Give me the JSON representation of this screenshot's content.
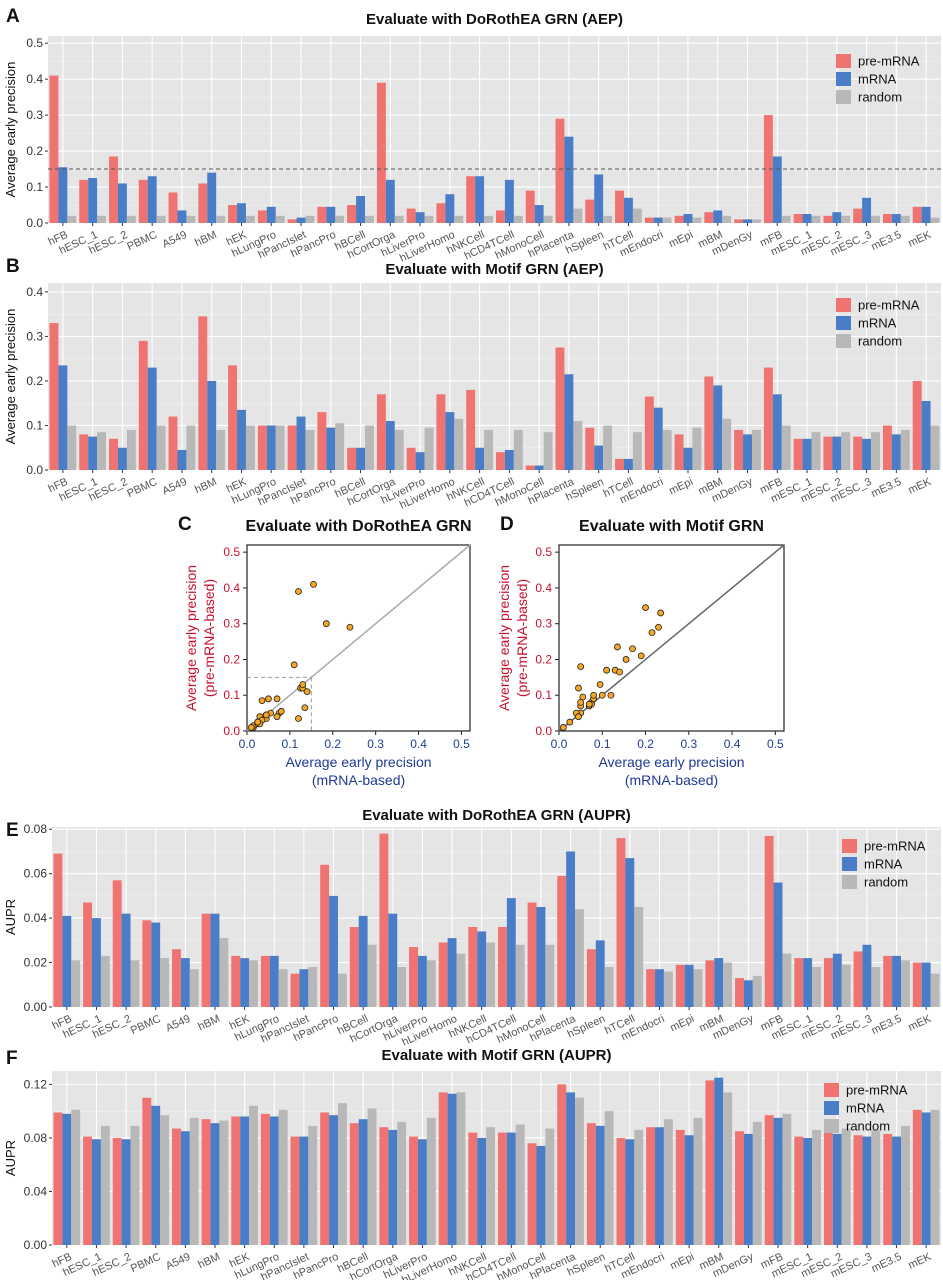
{
  "colors": {
    "pre": "#EF7370",
    "mrna": "#4A7DC7",
    "random": "#B8B8B8",
    "panel_bg": "#E5E5E5",
    "dot": "#F5A623"
  },
  "panel_labels": [
    "A",
    "B",
    "C",
    "D",
    "E",
    "F"
  ],
  "legend": [
    "pre-mRNA",
    "mRNA",
    "random"
  ],
  "chart_data": [
    {
      "type": "bar",
      "title": "Evaluate with DoRothEA GRN (AEP)",
      "ylabel": "Average early precision",
      "ylim": [
        0,
        0.52
      ],
      "yticks": [
        "0.0",
        "0.1",
        "0.2",
        "0.3",
        "0.4",
        "0.5"
      ],
      "reference_line": 0.15,
      "legend_position": "top-right",
      "categories": [
        "hFB",
        "hESC_1",
        "hESC_2",
        "PBMC",
        "A549",
        "hBM",
        "hEK",
        "hLungPro",
        "hPancIslet",
        "hPancPro",
        "hBCell",
        "hCortOrga",
        "hLiverPro",
        "hLiverHomo",
        "hNKCell",
        "hCD4TCell",
        "hMonoCell",
        "hPlacenta",
        "hSpleen",
        "hTCell",
        "mEndocri",
        "mEpi",
        "mBM",
        "mDenGy",
        "mFB",
        "mESC_1",
        "mESC_2",
        "mESC_3",
        "mE3.5",
        "mEK"
      ],
      "series": [
        {
          "name": "pre-mRNA",
          "values": [
            0.41,
            0.12,
            0.185,
            0.12,
            0.085,
            0.11,
            0.05,
            0.035,
            0.01,
            0.045,
            0.05,
            0.39,
            0.04,
            0.055,
            0.13,
            0.035,
            0.09,
            0.29,
            0.065,
            0.09,
            0.015,
            0.02,
            0.03,
            0.01,
            0.3,
            0.025,
            0.02,
            0.04,
            0.025,
            0.045
          ]
        },
        {
          "name": "mRNA",
          "values": [
            0.155,
            0.125,
            0.11,
            0.13,
            0.035,
            0.14,
            0.055,
            0.045,
            0.015,
            0.045,
            0.075,
            0.12,
            0.03,
            0.08,
            0.13,
            0.12,
            0.05,
            0.24,
            0.135,
            0.07,
            0.015,
            0.025,
            0.035,
            0.01,
            0.185,
            0.025,
            0.03,
            0.07,
            0.025,
            0.045
          ]
        },
        {
          "name": "random",
          "values": [
            0.02,
            0.02,
            0.02,
            0.02,
            0.02,
            0.02,
            0.02,
            0.02,
            0.02,
            0.02,
            0.02,
            0.02,
            0.02,
            0.02,
            0.02,
            0.02,
            0.02,
            0.04,
            0.02,
            0.04,
            0.015,
            0.015,
            0.02,
            0.01,
            0.02,
            0.02,
            0.02,
            0.02,
            0.02,
            0.015
          ]
        }
      ]
    },
    {
      "type": "bar",
      "title": "Evaluate with Motif GRN (AEP)",
      "ylabel": "Average early precision",
      "ylim": [
        0,
        0.42
      ],
      "yticks": [
        "0.0",
        "0.1",
        "0.2",
        "0.3",
        "0.4"
      ],
      "legend_position": "top-right",
      "categories": [
        "hFB",
        "hESC_1",
        "hESC_2",
        "PBMC",
        "A549",
        "hBM",
        "hEK",
        "hLungPro",
        "hPancIslet",
        "hPancPro",
        "hBCell",
        "hCortOrga",
        "hLiverPro",
        "hLiverHomo",
        "hNKCell",
        "hCD4TCell",
        "hMonoCell",
        "hPlacenta",
        "hSpleen",
        "hTCell",
        "mEndocri",
        "mEpi",
        "mBM",
        "mDenGy",
        "mFB",
        "mESC_1",
        "mESC_2",
        "mESC_3",
        "mE3.5",
        "mEK"
      ],
      "series": [
        {
          "name": "pre-mRNA",
          "values": [
            0.33,
            0.08,
            0.07,
            0.29,
            0.12,
            0.345,
            0.235,
            0.1,
            0.1,
            0.13,
            0.05,
            0.17,
            0.05,
            0.17,
            0.18,
            0.04,
            0.01,
            0.275,
            0.095,
            0.025,
            0.165,
            0.08,
            0.21,
            0.09,
            0.23,
            0.07,
            0.075,
            0.075,
            0.1,
            0.2
          ]
        },
        {
          "name": "mRNA",
          "values": [
            0.235,
            0.075,
            0.05,
            0.23,
            0.045,
            0.2,
            0.135,
            0.1,
            0.12,
            0.095,
            0.05,
            0.11,
            0.04,
            0.13,
            0.05,
            0.045,
            0.01,
            0.215,
            0.055,
            0.025,
            0.14,
            0.05,
            0.19,
            0.08,
            0.17,
            0.07,
            0.075,
            0.07,
            0.08,
            0.155
          ]
        },
        {
          "name": "random",
          "values": [
            0.1,
            0.085,
            0.09,
            0.1,
            0.1,
            0.09,
            0.1,
            0.1,
            0.09,
            0.105,
            0.1,
            0.09,
            0.095,
            0.115,
            0.09,
            0.09,
            0.085,
            0.11,
            0.1,
            0.085,
            0.09,
            0.095,
            0.115,
            0.09,
            0.1,
            0.085,
            0.085,
            0.085,
            0.09,
            0.1
          ]
        }
      ]
    },
    {
      "type": "scatter",
      "title": "Evaluate with DoRothEA GRN",
      "xlabel": [
        "Average early precision",
        "(mRNA-based)"
      ],
      "ylabel": [
        "Average early precision",
        "(pre-mRNA-based)"
      ],
      "xlim": [
        0,
        0.52
      ],
      "ylim": [
        0,
        0.52
      ],
      "ticks": [
        "0.0",
        "0.1",
        "0.2",
        "0.3",
        "0.4",
        "0.5"
      ],
      "highlight_box": 0.15,
      "points": [
        [
          0.155,
          0.41
        ],
        [
          0.125,
          0.12
        ],
        [
          0.11,
          0.185
        ],
        [
          0.13,
          0.12
        ],
        [
          0.035,
          0.085
        ],
        [
          0.14,
          0.11
        ],
        [
          0.055,
          0.05
        ],
        [
          0.045,
          0.035
        ],
        [
          0.015,
          0.01
        ],
        [
          0.045,
          0.045
        ],
        [
          0.075,
          0.05
        ],
        [
          0.12,
          0.39
        ],
        [
          0.03,
          0.04
        ],
        [
          0.08,
          0.055
        ],
        [
          0.13,
          0.13
        ],
        [
          0.12,
          0.035
        ],
        [
          0.05,
          0.09
        ],
        [
          0.24,
          0.29
        ],
        [
          0.135,
          0.065
        ],
        [
          0.07,
          0.09
        ],
        [
          0.015,
          0.015
        ],
        [
          0.025,
          0.02
        ],
        [
          0.035,
          0.03
        ],
        [
          0.01,
          0.01
        ],
        [
          0.185,
          0.3
        ],
        [
          0.025,
          0.025
        ],
        [
          0.03,
          0.02
        ],
        [
          0.07,
          0.04
        ],
        [
          0.025,
          0.025
        ],
        [
          0.045,
          0.045
        ]
      ]
    },
    {
      "type": "scatter",
      "title": "Evaluate with Motif GRN",
      "xlabel": [
        "Average early precision",
        "(mRNA-based)"
      ],
      "ylabel": [
        "Average early precision",
        "(pre-mRNA-based)"
      ],
      "xlim": [
        0,
        0.52
      ],
      "ylim": [
        0,
        0.52
      ],
      "ticks": [
        "0.0",
        "0.1",
        "0.2",
        "0.3",
        "0.4",
        "0.5"
      ],
      "points": [
        [
          0.235,
          0.33
        ],
        [
          0.075,
          0.08
        ],
        [
          0.05,
          0.07
        ],
        [
          0.23,
          0.29
        ],
        [
          0.045,
          0.12
        ],
        [
          0.2,
          0.345
        ],
        [
          0.135,
          0.235
        ],
        [
          0.1,
          0.1
        ],
        [
          0.12,
          0.1
        ],
        [
          0.095,
          0.13
        ],
        [
          0.05,
          0.05
        ],
        [
          0.11,
          0.17
        ],
        [
          0.04,
          0.05
        ],
        [
          0.13,
          0.17
        ],
        [
          0.05,
          0.18
        ],
        [
          0.045,
          0.04
        ],
        [
          0.01,
          0.01
        ],
        [
          0.215,
          0.275
        ],
        [
          0.055,
          0.095
        ],
        [
          0.025,
          0.025
        ],
        [
          0.14,
          0.165
        ],
        [
          0.05,
          0.08
        ],
        [
          0.19,
          0.21
        ],
        [
          0.08,
          0.09
        ],
        [
          0.17,
          0.23
        ],
        [
          0.07,
          0.07
        ],
        [
          0.075,
          0.075
        ],
        [
          0.07,
          0.075
        ],
        [
          0.08,
          0.1
        ],
        [
          0.155,
          0.2
        ]
      ]
    },
    {
      "type": "bar",
      "title": "Evaluate with DoRothEA GRN (AUPR)",
      "ylabel": "AUPR",
      "ylim": [
        0,
        0.081
      ],
      "yticks": [
        "0.00",
        "0.02",
        "0.04",
        "0.06",
        "0.08"
      ],
      "legend_position": "top-right",
      "categories": [
        "hFB",
        "hESC_1",
        "hESC_2",
        "PBMC",
        "A549",
        "hBM",
        "hEK",
        "hLungPro",
        "hPancIslet",
        "hPancPro",
        "hBCell",
        "hCortOrga",
        "hLiverPro",
        "hLiverHomo",
        "hNKCell",
        "hCD4TCell",
        "hMonoCell",
        "hPlacenta",
        "hSpleen",
        "hTCell",
        "mEndocri",
        "mEpi",
        "mBM",
        "mDenGy",
        "mFB",
        "mESC_1",
        "mESC_2",
        "mESC_3",
        "mE3.5",
        "mEK"
      ],
      "series": [
        {
          "name": "pre-mRNA",
          "values": [
            0.069,
            0.047,
            0.057,
            0.039,
            0.026,
            0.042,
            0.023,
            0.023,
            0.015,
            0.064,
            0.036,
            0.078,
            0.027,
            0.029,
            0.036,
            0.036,
            0.047,
            0.059,
            0.026,
            0.076,
            0.017,
            0.019,
            0.021,
            0.013,
            0.077,
            0.022,
            0.022,
            0.025,
            0.023,
            0.02
          ]
        },
        {
          "name": "mRNA",
          "values": [
            0.041,
            0.04,
            0.042,
            0.038,
            0.022,
            0.042,
            0.022,
            0.023,
            0.017,
            0.05,
            0.041,
            0.042,
            0.023,
            0.031,
            0.034,
            0.049,
            0.045,
            0.07,
            0.03,
            0.067,
            0.017,
            0.019,
            0.022,
            0.012,
            0.056,
            0.022,
            0.024,
            0.028,
            0.023,
            0.02
          ]
        },
        {
          "name": "random",
          "values": [
            0.021,
            0.023,
            0.021,
            0.022,
            0.017,
            0.031,
            0.021,
            0.017,
            0.018,
            0.015,
            0.028,
            0.018,
            0.021,
            0.024,
            0.029,
            0.028,
            0.028,
            0.044,
            0.018,
            0.045,
            0.016,
            0.017,
            0.02,
            0.014,
            0.024,
            0.018,
            0.019,
            0.018,
            0.021,
            0.015
          ]
        }
      ]
    },
    {
      "type": "bar",
      "title": "Evaluate with Motif GRN (AUPR)",
      "ylabel": "AUPR",
      "ylim": [
        0,
        0.13
      ],
      "yticks": [
        "0.00",
        "0.04",
        "0.08",
        "0.12"
      ],
      "legend_position": "top-right",
      "categories": [
        "hFB",
        "hESC_1",
        "hESC_2",
        "PBMC",
        "A549",
        "hBM",
        "hEK",
        "hLungPro",
        "hPancIslet",
        "hPancPro",
        "hBCell",
        "hCortOrga",
        "hLiverPro",
        "hLiverHomo",
        "hNKCell",
        "hCD4TCell",
        "hMonoCell",
        "hPlacenta",
        "hSpleen",
        "hTCell",
        "mEndocri",
        "mEpi",
        "mBM",
        "mDenGy",
        "mFB",
        "mESC_1",
        "mESC_2",
        "mESC_3",
        "mE3.5",
        "mEK"
      ],
      "series": [
        {
          "name": "pre-mRNA",
          "values": [
            0.099,
            0.081,
            0.08,
            0.11,
            0.087,
            0.094,
            0.096,
            0.098,
            0.081,
            0.099,
            0.091,
            0.088,
            0.081,
            0.114,
            0.084,
            0.084,
            0.076,
            0.12,
            0.091,
            0.08,
            0.088,
            0.086,
            0.123,
            0.085,
            0.097,
            0.081,
            0.084,
            0.082,
            0.083,
            0.101
          ]
        },
        {
          "name": "mRNA",
          "values": [
            0.098,
            0.079,
            0.079,
            0.104,
            0.085,
            0.091,
            0.096,
            0.096,
            0.081,
            0.097,
            0.094,
            0.086,
            0.079,
            0.113,
            0.08,
            0.084,
            0.074,
            0.114,
            0.089,
            0.079,
            0.088,
            0.082,
            0.125,
            0.083,
            0.095,
            0.08,
            0.083,
            0.081,
            0.081,
            0.099
          ]
        },
        {
          "name": "random",
          "values": [
            0.101,
            0.089,
            0.089,
            0.097,
            0.095,
            0.093,
            0.104,
            0.101,
            0.089,
            0.106,
            0.102,
            0.092,
            0.095,
            0.114,
            0.088,
            0.09,
            0.087,
            0.11,
            0.1,
            0.086,
            0.094,
            0.095,
            0.114,
            0.092,
            0.098,
            0.086,
            0.087,
            0.086,
            0.089,
            0.101
          ]
        }
      ]
    }
  ]
}
